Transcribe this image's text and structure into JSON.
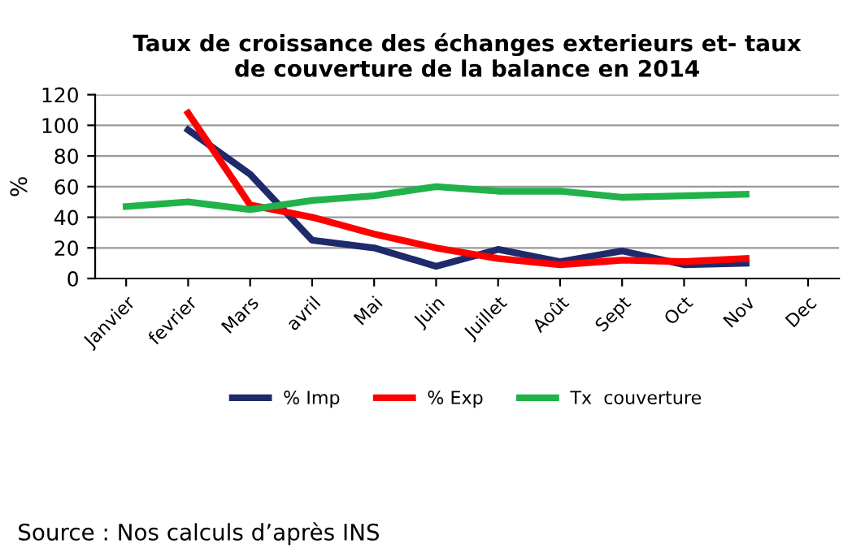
{
  "chart_data": {
    "type": "line",
    "title": "Taux de croissance des échanges exterieurs et- taux\nde couverture de la balance en 2014",
    "ylabel": "%",
    "categories": [
      "Janvier",
      "fevrier",
      "Mars",
      "avril",
      "Mai",
      "Juin",
      "Juillet",
      "Août",
      "Sept",
      "Oct",
      "Nov",
      "Dec"
    ],
    "series": [
      {
        "name": "% Imp",
        "color": "#1f2a6b",
        "values": [
          null,
          97,
          68,
          25,
          20,
          8,
          19,
          11,
          18,
          9,
          10,
          null
        ]
      },
      {
        "name": "% Exp",
        "color": "#ff0000",
        "values": [
          null,
          108,
          48,
          40,
          29,
          20,
          13,
          9,
          12,
          11,
          13,
          null
        ]
      },
      {
        "name": "Tx  couverture",
        "color": "#21b24a",
        "values": [
          47,
          50,
          45,
          51,
          54,
          60,
          57,
          57,
          53,
          54,
          55,
          null
        ]
      }
    ],
    "ylim": [
      0,
      120
    ],
    "yticks": [
      0,
      20,
      40,
      60,
      80,
      100,
      120
    ],
    "grid": "y",
    "legend": "bottom",
    "marker": "none",
    "line_style": "solid",
    "annotations": [
      "Source : Nos calculs d’après INS"
    ]
  }
}
